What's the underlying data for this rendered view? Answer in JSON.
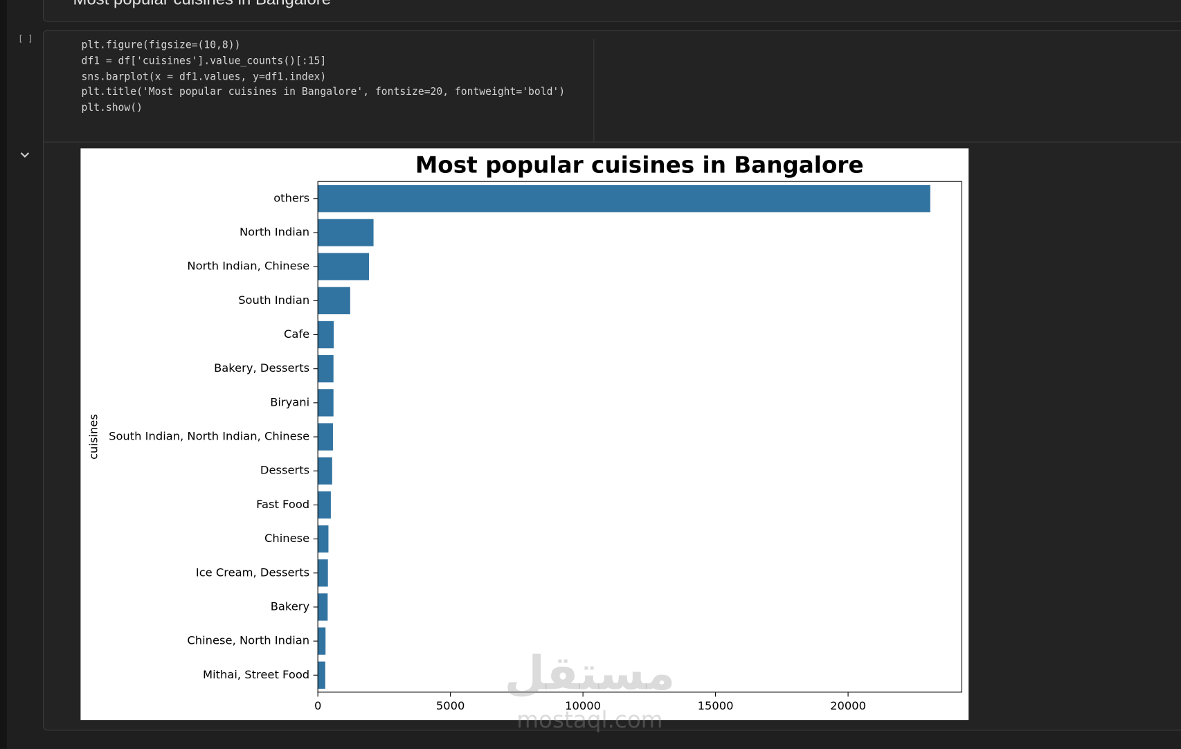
{
  "header": {
    "title": "Most popular cuisines in Bangalore"
  },
  "cell": {
    "prompt": "[ ]",
    "code": [
      "plt.figure(figsize=(10,8))",
      "df1 = df['cuisines'].value_counts()[:15]",
      "sns.barplot(x = df1.values, y=df1.index)",
      "plt.title('Most popular cuisines in Bangalore', fontsize=20, fontweight='bold')",
      "plt.show()"
    ]
  },
  "watermark": {
    "arabic": "مستقل",
    "latin": "mostaql.com"
  },
  "chart_data": {
    "type": "barh",
    "title": "Most popular cuisines in Bangalore",
    "ylabel": "cuisines",
    "categories": [
      "others",
      "North Indian",
      "North Indian, Chinese",
      "South Indian",
      "Cafe",
      "Bakery, Desserts",
      "Biryani",
      "South Indian, North Indian, Chinese",
      "Desserts",
      "Fast Food",
      "Chinese",
      "Ice Cream, Desserts",
      "Bakery",
      "Chinese, North Indian",
      "Mithai, Street Food"
    ],
    "values": [
      23100,
      2100,
      1930,
      1220,
      600,
      590,
      590,
      570,
      540,
      490,
      400,
      380,
      370,
      290,
      280
    ],
    "color": "#3274a1",
    "xlim": [
      0,
      24290
    ],
    "xticks": [
      0,
      5000,
      10000,
      15000,
      20000
    ]
  }
}
